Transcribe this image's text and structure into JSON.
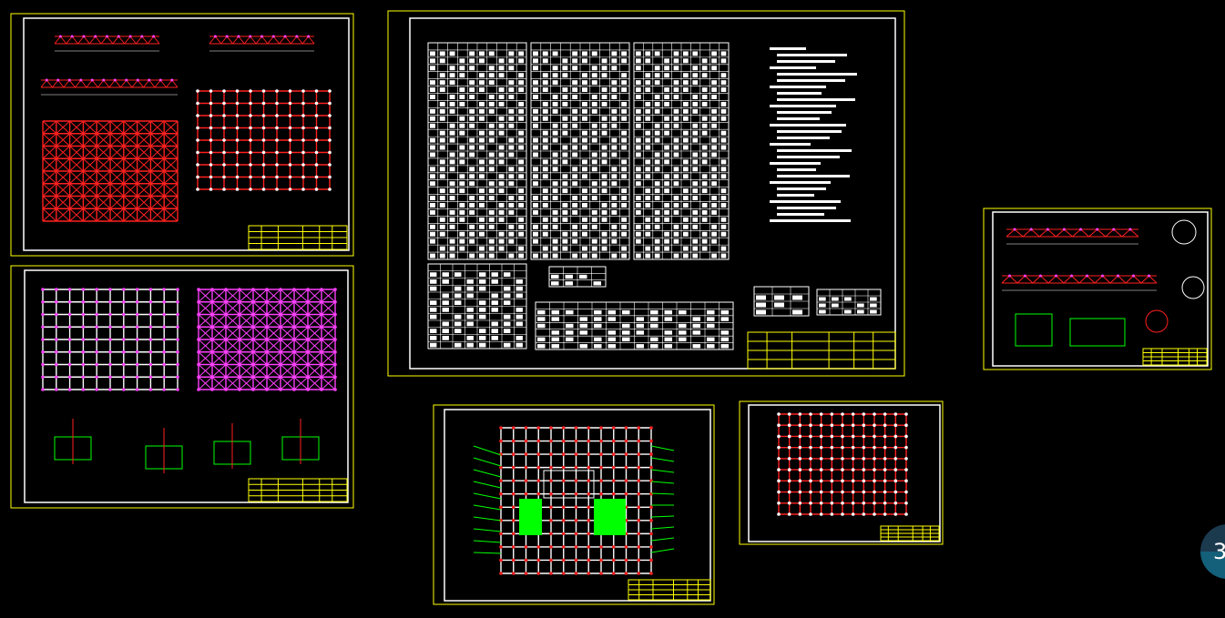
{
  "viewport": {
    "background": "#000000"
  },
  "colors": {
    "sheet_border": "#ffff00",
    "inner_frame": "#ffffff",
    "member_red": "#ff2020",
    "node_magenta": "#ff40ff",
    "table_line": "#ffffff",
    "leader_green": "#00ff00",
    "title_block": "#ffff00"
  },
  "sheets": [
    {
      "kind": "grid-plan-truss"
    },
    {
      "kind": "grid-plan-nodes"
    },
    {
      "kind": "material-table"
    },
    {
      "kind": "floor-plan"
    },
    {
      "kind": "detail-elevation"
    },
    {
      "kind": "grid-plan-column"
    }
  ],
  "floating_button": {
    "label": "3",
    "icon": "page-indicator-icon"
  }
}
